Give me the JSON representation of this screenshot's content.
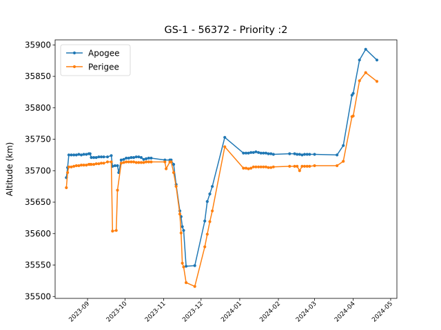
{
  "chart_data": {
    "type": "line",
    "title": "GS-1 - 56372 - Priority :2",
    "xlabel": "",
    "ylabel": "Altitude (km)",
    "xlim": [
      "2023-08-06",
      "2024-05-06"
    ],
    "ylim": [
      35497,
      35908
    ],
    "yticks": [
      35500,
      35550,
      35600,
      35650,
      35700,
      35750,
      35800,
      35850,
      35900
    ],
    "xticks": [
      "2023-09",
      "2023-10",
      "2023-11",
      "2023-12",
      "2024-01",
      "2024-02",
      "2024-03",
      "2024-04",
      "2024-05"
    ],
    "legend_position": "top-left",
    "colors": {
      "apogee": "#1f77b4",
      "perigee": "#ff7f0e"
    },
    "series": [
      {
        "name": "Apogee",
        "points": [
          [
            "2023-08-15",
            35689
          ],
          [
            "2023-08-16",
            35705
          ],
          [
            "2023-08-17",
            35725
          ],
          [
            "2023-08-19",
            35725
          ],
          [
            "2023-08-21",
            35725
          ],
          [
            "2023-08-23",
            35725
          ],
          [
            "2023-08-25",
            35726
          ],
          [
            "2023-08-27",
            35725
          ],
          [
            "2023-08-29",
            35726
          ],
          [
            "2023-08-31",
            35726
          ],
          [
            "2023-09-02",
            35727
          ],
          [
            "2023-09-03",
            35727
          ],
          [
            "2023-09-04",
            35721
          ],
          [
            "2023-09-06",
            35721
          ],
          [
            "2023-09-08",
            35721
          ],
          [
            "2023-09-10",
            35722
          ],
          [
            "2023-09-12",
            35722
          ],
          [
            "2023-09-14",
            35722
          ],
          [
            "2023-09-17",
            35722
          ],
          [
            "2023-09-20",
            35724
          ],
          [
            "2023-09-21",
            35707
          ],
          [
            "2023-09-23",
            35708
          ],
          [
            "2023-09-25",
            35708
          ],
          [
            "2023-09-26",
            35697
          ],
          [
            "2023-09-28",
            35717
          ],
          [
            "2023-09-30",
            35718
          ],
          [
            "2023-10-02",
            35720
          ],
          [
            "2023-10-04",
            35720
          ],
          [
            "2023-10-06",
            35721
          ],
          [
            "2023-10-08",
            35721
          ],
          [
            "2023-10-10",
            35722
          ],
          [
            "2023-10-12",
            35722
          ],
          [
            "2023-10-14",
            35721
          ],
          [
            "2023-10-16",
            35718
          ],
          [
            "2023-10-18",
            35719
          ],
          [
            "2023-10-20",
            35720
          ],
          [
            "2023-10-22",
            35720
          ],
          [
            "2023-11-02",
            35717
          ],
          [
            "2023-11-06",
            35717
          ],
          [
            "2023-11-07",
            35717
          ],
          [
            "2023-11-09",
            35710
          ],
          [
            "2023-11-11",
            35678
          ],
          [
            "2023-11-14",
            35636
          ],
          [
            "2023-11-15",
            35627
          ],
          [
            "2023-11-16",
            35611
          ],
          [
            "2023-11-17",
            35605
          ],
          [
            "2023-11-19",
            35548
          ],
          [
            "2023-11-26",
            35549
          ],
          [
            "2023-12-04",
            35620
          ],
          [
            "2023-12-06",
            35651
          ],
          [
            "2023-12-08",
            35663
          ],
          [
            "2023-12-10",
            35675
          ],
          [
            "2023-12-20",
            35753
          ],
          [
            "2024-01-04",
            35728
          ],
          [
            "2024-01-06",
            35728
          ],
          [
            "2024-01-08",
            35728
          ],
          [
            "2024-01-10",
            35729
          ],
          [
            "2024-01-12",
            35729
          ],
          [
            "2024-01-14",
            35730
          ],
          [
            "2024-01-16",
            35729
          ],
          [
            "2024-01-18",
            35728
          ],
          [
            "2024-01-20",
            35728
          ],
          [
            "2024-01-22",
            35728
          ],
          [
            "2024-01-24",
            35727
          ],
          [
            "2024-01-26",
            35727
          ],
          [
            "2024-01-28",
            35726
          ],
          [
            "2024-02-10",
            35727
          ],
          [
            "2024-02-14",
            35727
          ],
          [
            "2024-02-16",
            35726
          ],
          [
            "2024-02-18",
            35726
          ],
          [
            "2024-02-20",
            35725
          ],
          [
            "2024-02-22",
            35726
          ],
          [
            "2024-02-24",
            35726
          ],
          [
            "2024-02-26",
            35726
          ],
          [
            "2024-03-01",
            35726
          ],
          [
            "2024-03-19",
            35725
          ],
          [
            "2024-03-24",
            35740
          ],
          [
            "2024-03-31",
            35820
          ],
          [
            "2024-04-01",
            35823
          ],
          [
            "2024-04-06",
            35876
          ],
          [
            "2024-04-11",
            35893
          ],
          [
            "2024-04-20",
            35876
          ]
        ]
      },
      {
        "name": "Perigee",
        "points": [
          [
            "2023-08-15",
            35673
          ],
          [
            "2023-08-16",
            35697
          ],
          [
            "2023-08-17",
            35706
          ],
          [
            "2023-08-19",
            35706
          ],
          [
            "2023-08-21",
            35707
          ],
          [
            "2023-08-23",
            35708
          ],
          [
            "2023-08-25",
            35708
          ],
          [
            "2023-08-27",
            35709
          ],
          [
            "2023-08-29",
            35709
          ],
          [
            "2023-08-31",
            35709
          ],
          [
            "2023-09-02",
            35710
          ],
          [
            "2023-09-03",
            35710
          ],
          [
            "2023-09-04",
            35710
          ],
          [
            "2023-09-06",
            35710
          ],
          [
            "2023-09-08",
            35711
          ],
          [
            "2023-09-10",
            35711
          ],
          [
            "2023-09-12",
            35712
          ],
          [
            "2023-09-14",
            35712
          ],
          [
            "2023-09-17",
            35714
          ],
          [
            "2023-09-20",
            35714
          ],
          [
            "2023-09-21",
            35604
          ],
          [
            "2023-09-24",
            35605
          ],
          [
            "2023-09-25",
            35669
          ],
          [
            "2023-09-28",
            35712
          ],
          [
            "2023-09-30",
            35713
          ],
          [
            "2023-10-02",
            35714
          ],
          [
            "2023-10-04",
            35714
          ],
          [
            "2023-10-06",
            35714
          ],
          [
            "2023-10-08",
            35714
          ],
          [
            "2023-10-10",
            35713
          ],
          [
            "2023-10-12",
            35713
          ],
          [
            "2023-10-14",
            35713
          ],
          [
            "2023-10-16",
            35713
          ],
          [
            "2023-10-18",
            35714
          ],
          [
            "2023-10-20",
            35714
          ],
          [
            "2023-10-22",
            35714
          ],
          [
            "2023-11-02",
            35714
          ],
          [
            "2023-11-03",
            35703
          ],
          [
            "2023-11-06",
            35714
          ],
          [
            "2023-11-07",
            35714
          ],
          [
            "2023-11-09",
            35697
          ],
          [
            "2023-11-11",
            35675
          ],
          [
            "2023-11-14",
            35631
          ],
          [
            "2023-11-15",
            35601
          ],
          [
            "2023-11-16",
            35553
          ],
          [
            "2023-11-17",
            35547
          ],
          [
            "2023-11-19",
            35522
          ],
          [
            "2023-11-26",
            35516
          ],
          [
            "2023-12-04",
            35579
          ],
          [
            "2023-12-06",
            35599
          ],
          [
            "2023-12-08",
            35619
          ],
          [
            "2023-12-10",
            35636
          ],
          [
            "2023-12-20",
            35738
          ],
          [
            "2024-01-04",
            35704
          ],
          [
            "2024-01-06",
            35704
          ],
          [
            "2024-01-08",
            35703
          ],
          [
            "2024-01-10",
            35704
          ],
          [
            "2024-01-12",
            35706
          ],
          [
            "2024-01-14",
            35706
          ],
          [
            "2024-01-16",
            35706
          ],
          [
            "2024-01-18",
            35706
          ],
          [
            "2024-01-20",
            35706
          ],
          [
            "2024-01-22",
            35706
          ],
          [
            "2024-01-24",
            35705
          ],
          [
            "2024-01-26",
            35705
          ],
          [
            "2024-01-28",
            35706
          ],
          [
            "2024-02-10",
            35707
          ],
          [
            "2024-02-14",
            35707
          ],
          [
            "2024-02-16",
            35707
          ],
          [
            "2024-02-18",
            35700
          ],
          [
            "2024-02-20",
            35707
          ],
          [
            "2024-02-22",
            35707
          ],
          [
            "2024-02-24",
            35707
          ],
          [
            "2024-02-26",
            35707
          ],
          [
            "2024-03-01",
            35708
          ],
          [
            "2024-03-19",
            35708
          ],
          [
            "2024-03-24",
            35715
          ],
          [
            "2024-03-31",
            35786
          ],
          [
            "2024-04-01",
            35787
          ],
          [
            "2024-04-06",
            35843
          ],
          [
            "2024-04-11",
            35856
          ],
          [
            "2024-04-20",
            35842
          ]
        ]
      }
    ]
  }
}
